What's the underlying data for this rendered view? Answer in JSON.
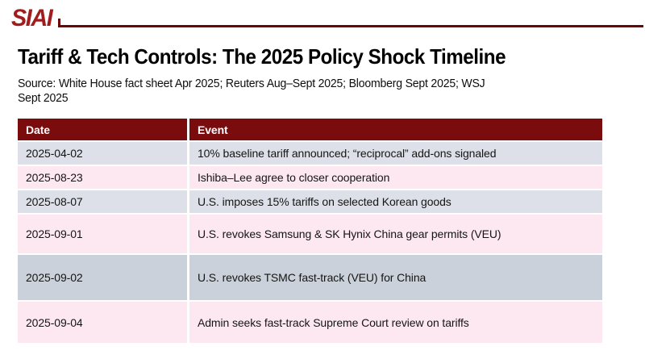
{
  "brand": {
    "logo": "SIAI"
  },
  "header": {
    "title": "Tariff & Tech Controls: The 2025 Policy Shock Timeline",
    "source_line1": "Source: White House fact sheet Apr 2025; Reuters Aug–Sept 2025; Bloomberg Sept 2025; WSJ",
    "source_line2": "Sept 2025"
  },
  "table": {
    "columns": [
      "Date",
      "Event"
    ],
    "rows": [
      {
        "date": "2025-04-02",
        "event": "10% baseline tariff announced; “reciprocal” add-ons signaled",
        "tone": "gray"
      },
      {
        "date": "2025-08-23",
        "event": "Ishiba–Lee agree to closer cooperation",
        "tone": "pink"
      },
      {
        "date": "2025-08-07",
        "event": "U.S. imposes 15% tariffs on selected Korean goods",
        "tone": "gray"
      },
      {
        "date": "2025-09-01",
        "event": "U.S. revokes Samsung & SK Hynix China gear permits (VEU)",
        "tone": "pink"
      },
      {
        "date": "2025-09-02",
        "event": "U.S. revokes TSMC fast-track (VEU) for China",
        "tone": "darkgray"
      },
      {
        "date": "2025-09-04",
        "event": "Admin seeks fast-track Supreme Court review on tariffs",
        "tone": "pink"
      }
    ]
  },
  "colors": {
    "brand_red": "#A11D1D",
    "rule_maroon": "#6B0505",
    "table_header_maroon": "#7B0C0E",
    "row_gray": "#DDE0E8",
    "row_gray_dark": "#CBD1DA",
    "row_pink": "#FDE8F2"
  }
}
